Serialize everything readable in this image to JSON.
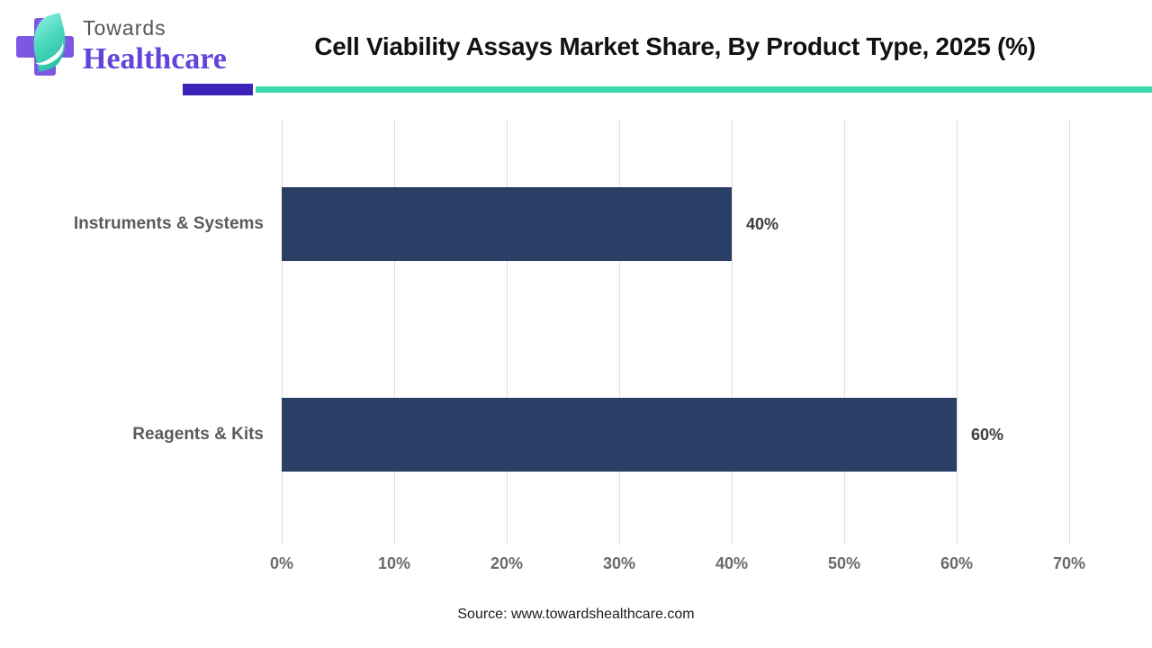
{
  "header": {
    "logo": {
      "line1": "Towards",
      "line2": "Healthcare"
    },
    "title": "Cell Viability Assays Market Share, By Product Type, 2025 (%)",
    "accent_purple": "#3b22b8",
    "accent_teal": "#3dd9ae"
  },
  "chart_data": {
    "type": "bar",
    "orientation": "horizontal",
    "title": "Cell Viability Assays Market Share, By Product Type, 2025 (%)",
    "categories": [
      "Instruments & Systems",
      "Reagents & Kits"
    ],
    "values": [
      40,
      60
    ],
    "value_labels": [
      "40%",
      "60%"
    ],
    "xlabel": "",
    "ylabel": "",
    "xlim": [
      0,
      70
    ],
    "ticks": [
      0,
      10,
      20,
      30,
      40,
      50,
      60,
      70
    ],
    "tick_labels": [
      "0%",
      "10%",
      "20%",
      "30%",
      "40%",
      "50%",
      "60%",
      "70%"
    ],
    "bar_color": "#2a3f66",
    "grid": true,
    "legend": false
  },
  "footer": {
    "source": "Source: www.towardshealthcare.com"
  }
}
